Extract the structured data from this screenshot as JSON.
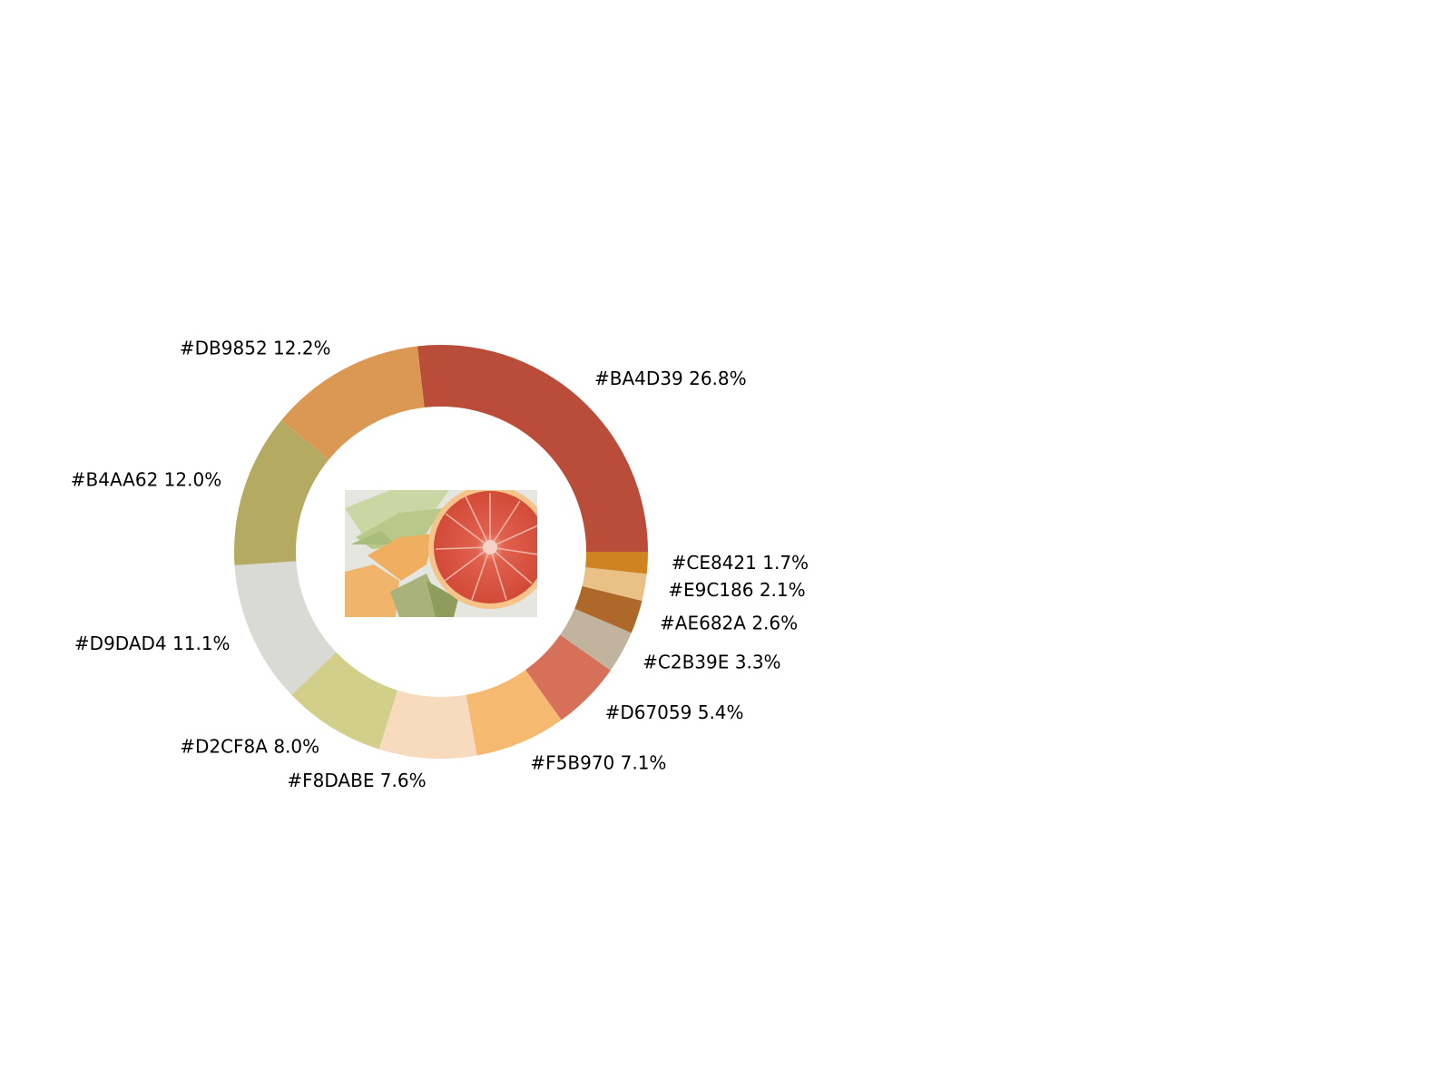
{
  "chart_data": {
    "type": "pie",
    "variant": "donut",
    "start_angle_deg": 0,
    "direction": "counterclockwise",
    "center_image": "photo of cantaloupe, honeydew melon slices and a halved pink grapefruit",
    "slices": [
      {
        "label": "#BA4D39",
        "value": 26.8,
        "display": "#BA4D39 26.8%",
        "color": "#BA4D39"
      },
      {
        "label": "#DB9852",
        "value": 12.2,
        "display": "#DB9852 12.2%",
        "color": "#DB9852"
      },
      {
        "label": "#B4AA62",
        "value": 12.0,
        "display": "#B4AA62 12.0%",
        "color": "#B4AA62"
      },
      {
        "label": "#D9DAD4",
        "value": 11.1,
        "display": "#D9DAD4 11.1%",
        "color": "#D9DAD4"
      },
      {
        "label": "#D2CF8A",
        "value": 8.0,
        "display": "#D2CF8A 8.0%",
        "color": "#D2CF8A"
      },
      {
        "label": "#F8DABE",
        "value": 7.6,
        "display": "#F8DABE 7.6%",
        "color": "#F8DABE"
      },
      {
        "label": "#F5B970",
        "value": 7.1,
        "display": "#F5B970 7.1%",
        "color": "#F5B970"
      },
      {
        "label": "#D67059",
        "value": 5.4,
        "display": "#D67059 5.4%",
        "color": "#D67059"
      },
      {
        "label": "#C2B39E",
        "value": 3.3,
        "display": "#C2B39E 3.3%",
        "color": "#C2B39E"
      },
      {
        "label": "#AE682A",
        "value": 2.6,
        "display": "#AE682A 2.6%",
        "color": "#AE682A"
      },
      {
        "label": "#E9C186",
        "value": 2.1,
        "display": "#E9C186 2.1%",
        "color": "#E9C186"
      },
      {
        "label": "#CE8421",
        "value": 1.7,
        "display": "#CE8421 1.7%",
        "color": "#CE8421"
      }
    ]
  }
}
